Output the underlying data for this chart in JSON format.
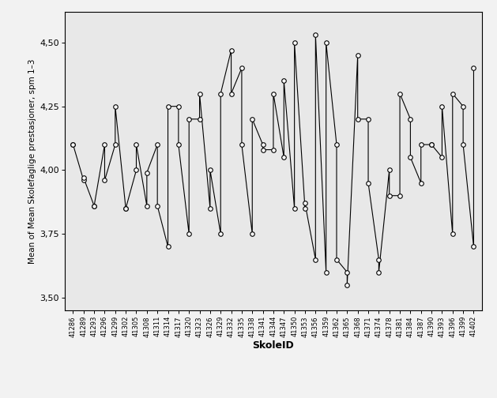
{
  "school_data": [
    [
      "41286",
      [
        4.1,
        4.1
      ]
    ],
    [
      "41289",
      [
        3.96,
        3.97
      ]
    ],
    [
      "41293",
      [
        3.86,
        3.86
      ]
    ],
    [
      "41296",
      [
        4.1,
        3.96
      ]
    ],
    [
      "41299",
      [
        4.1,
        4.25
      ]
    ],
    [
      "41302",
      [
        3.85,
        3.85
      ]
    ],
    [
      "41305",
      [
        4.0,
        4.1
      ]
    ],
    [
      "41308",
      [
        3.86,
        3.99
      ]
    ],
    [
      "41311",
      [
        4.1,
        3.86
      ]
    ],
    [
      "41314",
      [
        3.7,
        4.25
      ]
    ],
    [
      "41317",
      [
        4.25,
        4.1
      ]
    ],
    [
      "41320",
      [
        3.75,
        4.2
      ]
    ],
    [
      "41323",
      [
        4.2,
        4.3
      ]
    ],
    [
      "41326",
      [
        3.85,
        4.0
      ]
    ],
    [
      "41329",
      [
        3.75,
        4.3
      ]
    ],
    [
      "41332",
      [
        4.47,
        4.3
      ]
    ],
    [
      "41335",
      [
        4.4,
        4.1
      ]
    ],
    [
      "41338",
      [
        3.75,
        4.2
      ]
    ],
    [
      "41341",
      [
        4.1,
        4.08
      ]
    ],
    [
      "41344",
      [
        4.08,
        4.3
      ]
    ],
    [
      "41347",
      [
        4.05,
        4.35
      ]
    ],
    [
      "41350",
      [
        3.85,
        4.5
      ]
    ],
    [
      "41353",
      [
        3.85,
        3.87
      ]
    ],
    [
      "41356",
      [
        3.65,
        4.53
      ]
    ],
    [
      "41359",
      [
        3.6,
        4.5
      ]
    ],
    [
      "41362",
      [
        4.1,
        3.65
      ]
    ],
    [
      "41365",
      [
        3.6,
        3.55
      ]
    ],
    [
      "41368",
      [
        4.45,
        4.2
      ]
    ],
    [
      "41371",
      [
        4.2,
        3.95
      ]
    ],
    [
      "41374",
      [
        3.65,
        3.6
      ]
    ],
    [
      "41378",
      [
        4.0,
        3.9
      ]
    ],
    [
      "41381",
      [
        3.9,
        4.3
      ]
    ],
    [
      "41384",
      [
        4.2,
        4.05
      ]
    ],
    [
      "41387",
      [
        3.95,
        4.1
      ]
    ],
    [
      "41390",
      [
        4.1,
        4.1
      ]
    ],
    [
      "41393",
      [
        4.05,
        4.25
      ]
    ],
    [
      "41396",
      [
        3.75,
        4.3
      ]
    ],
    [
      "41399",
      [
        4.25,
        4.1
      ]
    ],
    [
      "41402",
      [
        3.7,
        4.4
      ]
    ]
  ],
  "xlabel": "SkoleID",
  "ylabel": "Mean of Mean Skolefaglige prestasjoner, spm 1–3",
  "ylim": [
    3.45,
    4.62
  ],
  "yticks": [
    3.5,
    3.75,
    4.0,
    4.25,
    4.5
  ],
  "bg_color": "#e8e8e8",
  "line_color": "#000000",
  "marker_facecolor": "#ffffff",
  "marker_edgecolor": "#000000"
}
